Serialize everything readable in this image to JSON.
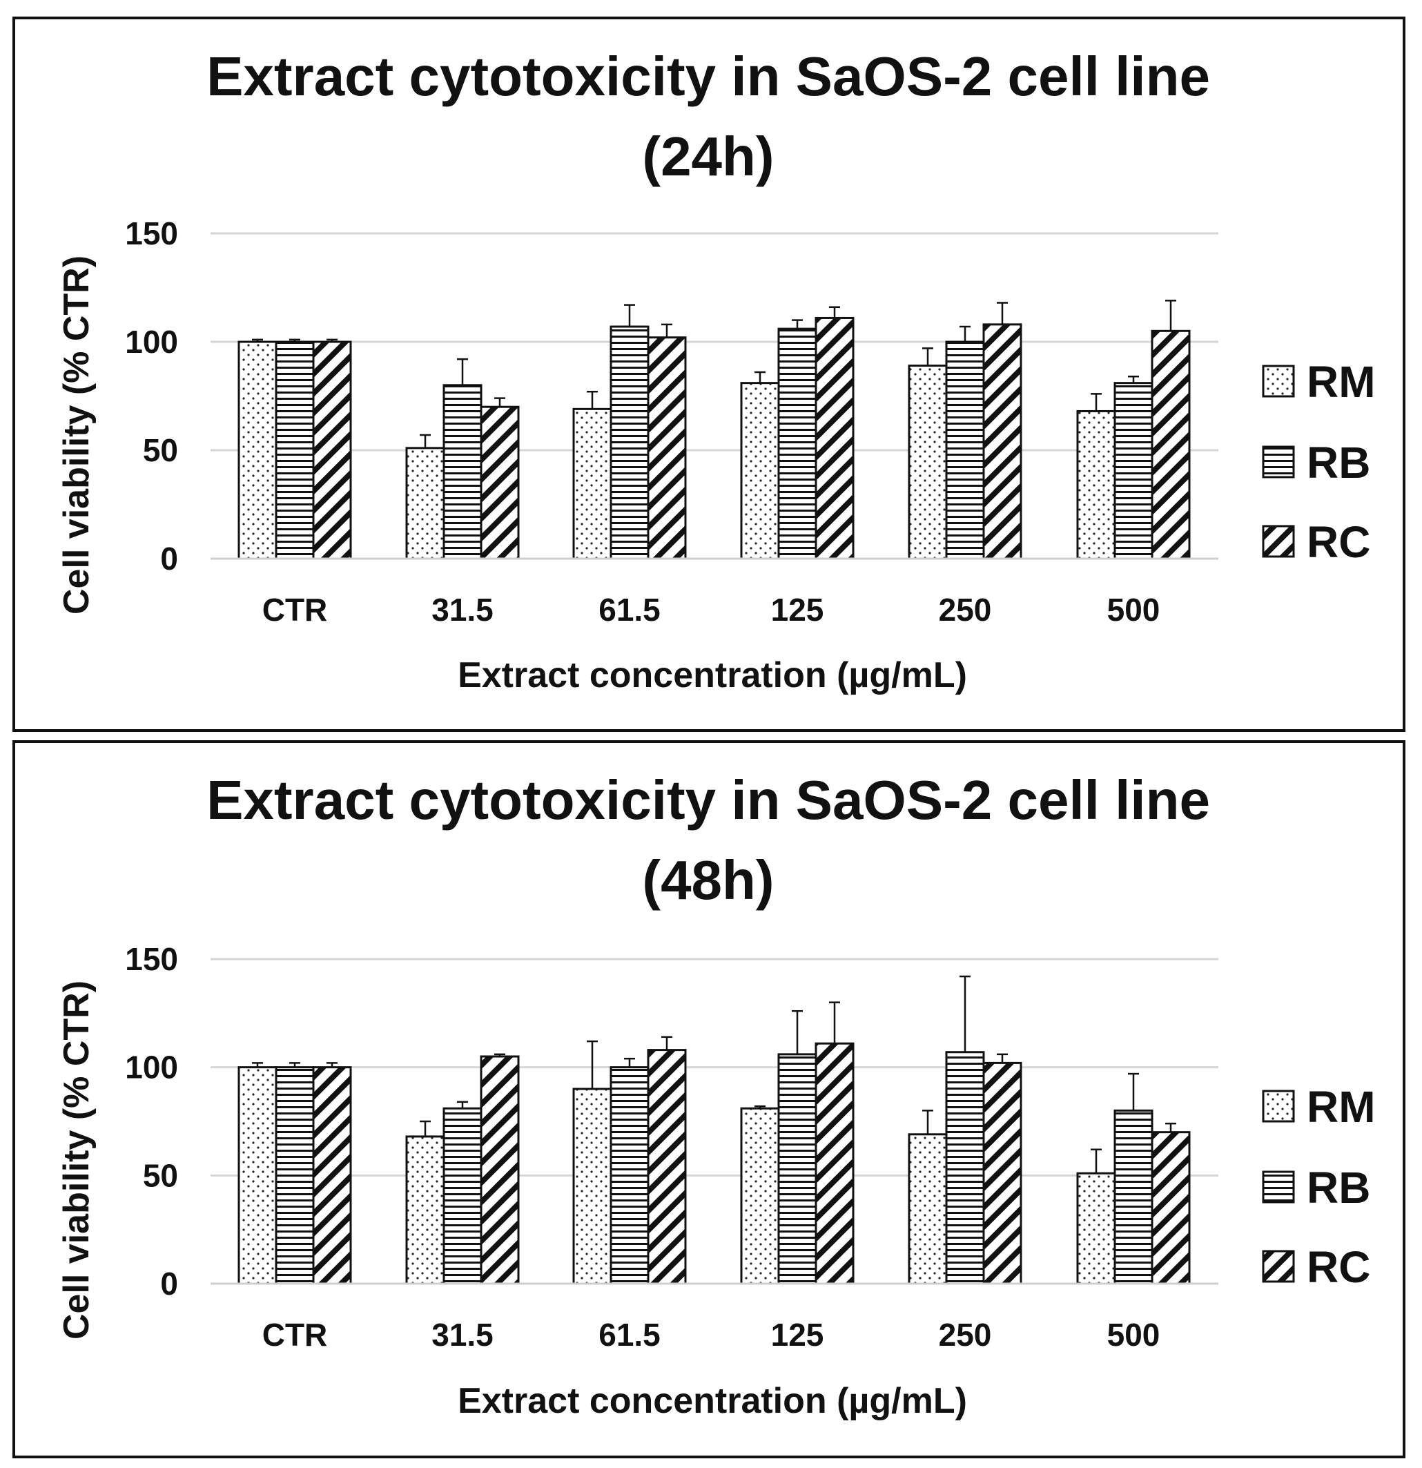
{
  "chart_data": [
    {
      "type": "bar",
      "title": "Extract cytotoxicity in SaOS-2 cell line",
      "subtitle": "(24h)",
      "xlabel": "Extract concentration (µg/mL)",
      "ylabel": "Cell viability (% CTR)",
      "ylim": [
        0,
        150
      ],
      "yticks": [
        0,
        50,
        100,
        150
      ],
      "grid": true,
      "legend_position": "right",
      "categories": [
        "CTR",
        "31.5",
        "61.5",
        "125",
        "250",
        "500"
      ],
      "series": [
        {
          "name": "RM",
          "pattern": "dots",
          "values": [
            100,
            51,
            69,
            81,
            89,
            68
          ],
          "errors": [
            1,
            6,
            8,
            5,
            8,
            8
          ]
        },
        {
          "name": "RB",
          "pattern": "horizontal",
          "values": [
            100,
            80,
            107,
            106,
            100,
            81
          ],
          "errors": [
            1,
            12,
            10,
            4,
            7,
            3
          ]
        },
        {
          "name": "RC",
          "pattern": "diagonal",
          "values": [
            100,
            70,
            102,
            111,
            108,
            105
          ],
          "errors": [
            1,
            4,
            6,
            5,
            10,
            14
          ]
        }
      ]
    },
    {
      "type": "bar",
      "title": "Extract cytotoxicity in SaOS-2 cell line",
      "subtitle": "(48h)",
      "xlabel": "Extract concentration (µg/mL)",
      "ylabel": "Cell viability (% CTR)",
      "ylim": [
        0,
        150
      ],
      "yticks": [
        0,
        50,
        100,
        150
      ],
      "grid": true,
      "legend_position": "right",
      "categories": [
        "CTR",
        "31.5",
        "61.5",
        "125",
        "250",
        "500"
      ],
      "series": [
        {
          "name": "RM",
          "pattern": "dots",
          "values": [
            100,
            68,
            90,
            81,
            69,
            51
          ],
          "errors": [
            2,
            7,
            22,
            1,
            11,
            11
          ]
        },
        {
          "name": "RB",
          "pattern": "horizontal",
          "values": [
            100,
            81,
            100,
            106,
            107,
            80
          ],
          "errors": [
            2,
            3,
            4,
            20,
            35,
            17
          ]
        },
        {
          "name": "RC",
          "pattern": "diagonal",
          "values": [
            100,
            105,
            108,
            111,
            102,
            70
          ],
          "errors": [
            2,
            1,
            6,
            19,
            4,
            4
          ]
        }
      ]
    }
  ]
}
